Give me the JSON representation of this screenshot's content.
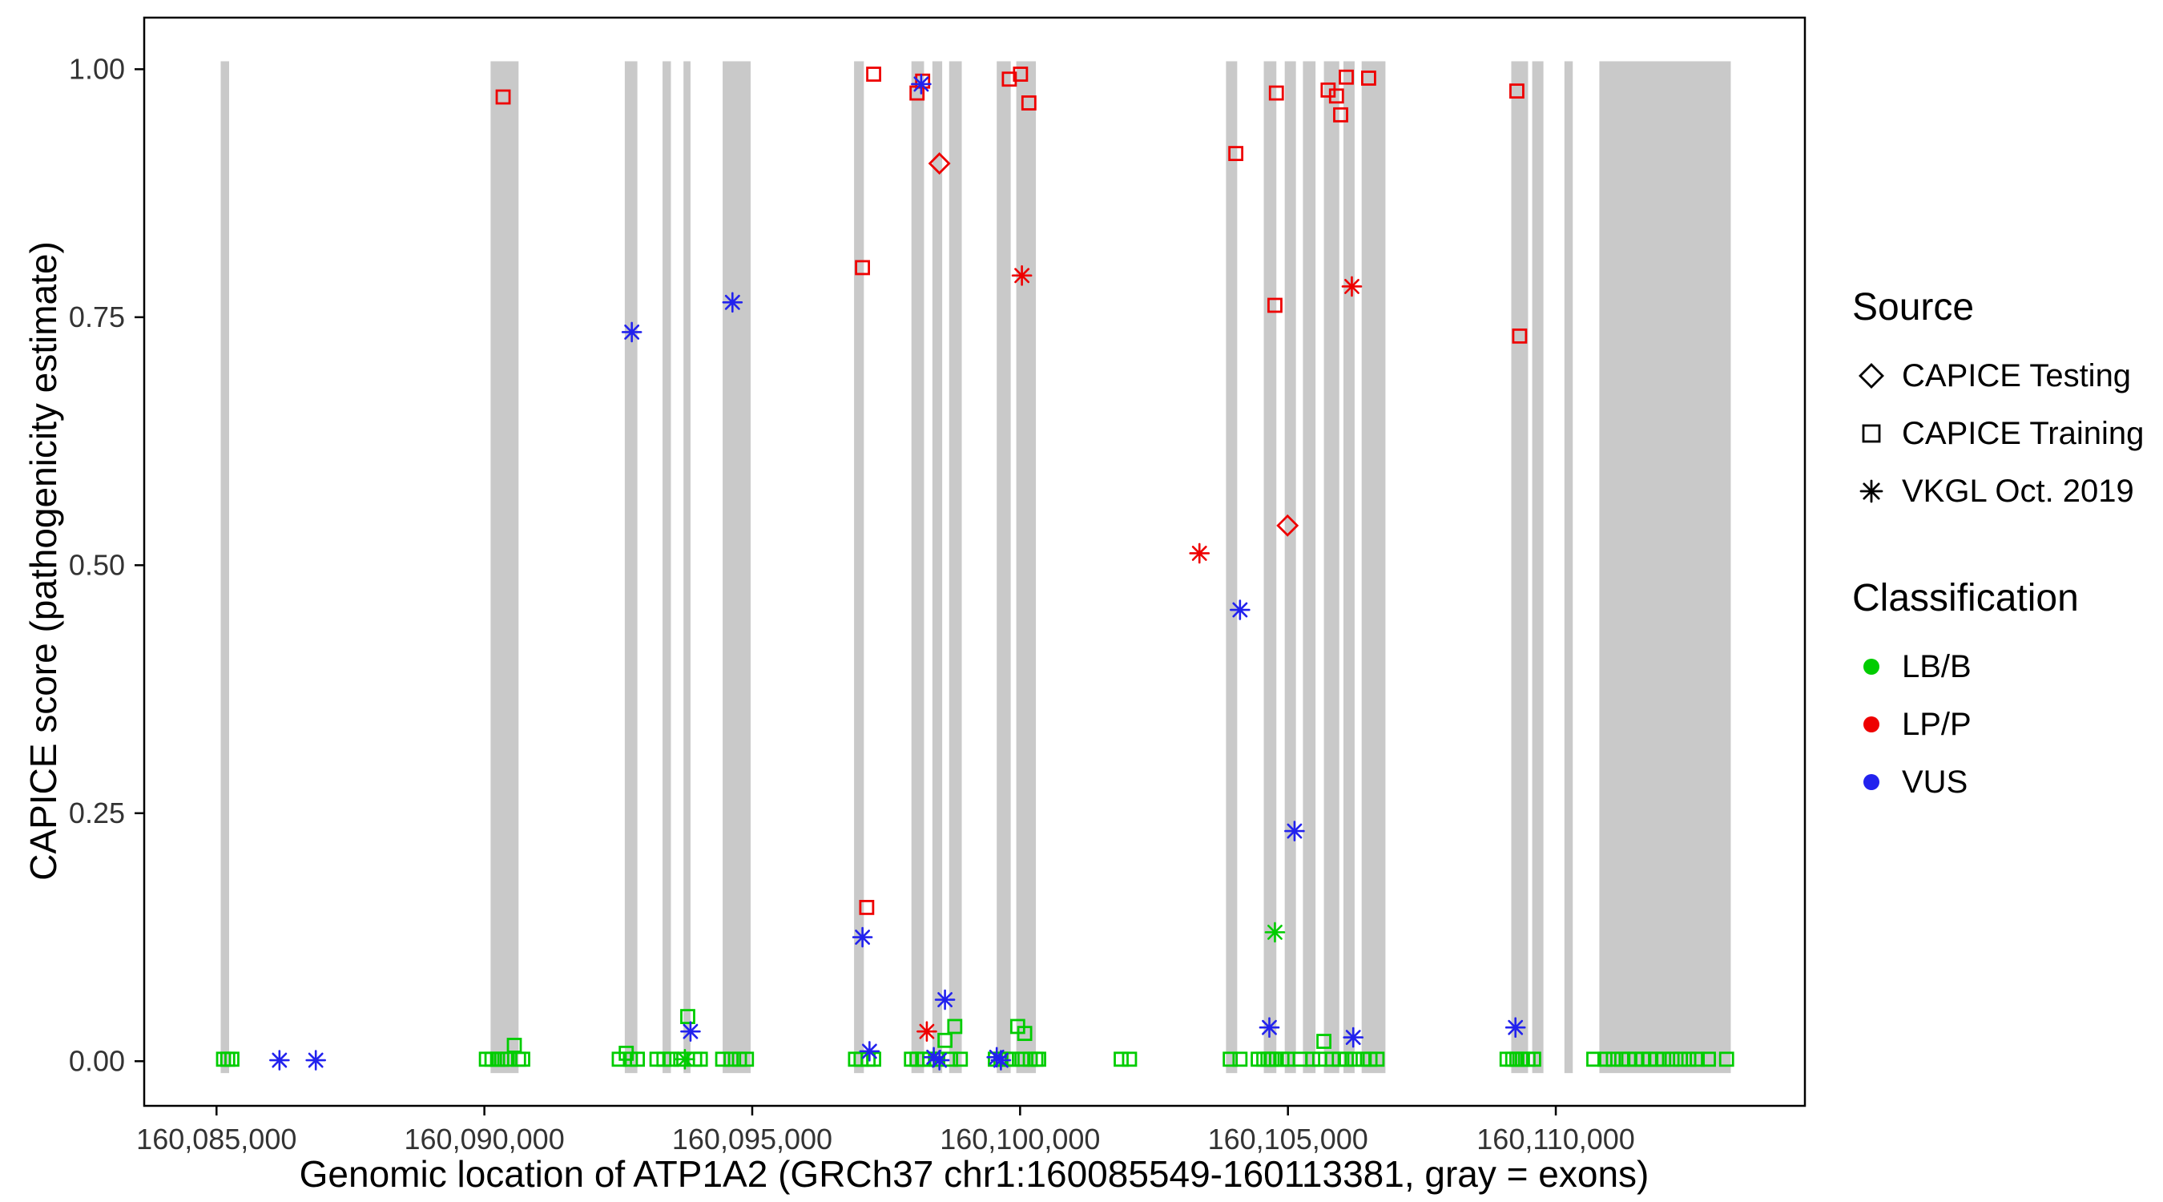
{
  "chart_data": {
    "type": "scatter",
    "xlabel": "Genomic location of ATP1A2 (GRCh37 chr1:160085549-160113381, gray = exons)",
    "ylabel": "CAPICE score (pathogenicity estimate)",
    "xlim": [
      160083650,
      160114650
    ],
    "ylim": [
      -0.045,
      1.052
    ],
    "grid": false,
    "x_ticks": [
      {
        "value": 160085000,
        "label": "160,085,000"
      },
      {
        "value": 160090000,
        "label": "160,090,000"
      },
      {
        "value": 160095000,
        "label": "160,095,000"
      },
      {
        "value": 160100000,
        "label": "160,100,000"
      },
      {
        "value": 160105000,
        "label": "160,105,000"
      },
      {
        "value": 160110000,
        "label": "160,110,000"
      }
    ],
    "y_ticks": [
      {
        "value": 0.0,
        "label": "0.00"
      },
      {
        "value": 0.25,
        "label": "0.25"
      },
      {
        "value": 0.5,
        "label": "0.50"
      },
      {
        "value": 0.75,
        "label": "0.75"
      },
      {
        "value": 1.0,
        "label": "1.00"
      }
    ],
    "exon_color": "#c9c9c9",
    "exon_band": [
      -0.012,
      1.008
    ],
    "exons": [
      [
        160085078,
        160085235
      ],
      [
        160090116,
        160090638
      ],
      [
        160092621,
        160092856
      ],
      [
        160093326,
        160093482
      ],
      [
        160093717,
        160093848
      ],
      [
        160094448,
        160094970
      ],
      [
        160096901,
        160097084
      ],
      [
        160097972,
        160098207
      ],
      [
        160098363,
        160098546
      ],
      [
        160098676,
        160098911
      ],
      [
        160099564,
        160099825
      ],
      [
        160099929,
        160100295
      ],
      [
        160103844,
        160104053
      ],
      [
        160104549,
        160104784
      ],
      [
        160104940,
        160105149
      ],
      [
        160105280,
        160105515
      ],
      [
        160105671,
        160105958
      ],
      [
        160106036,
        160106245
      ],
      [
        160106376,
        160106820
      ],
      [
        160109169,
        160109482
      ],
      [
        160109560,
        160109769
      ],
      [
        160110161,
        160110317
      ],
      [
        160110813,
        160113266
      ]
    ],
    "classification_colors": {
      "LB/B": "#00cc00",
      "LP/P": "#ee0000",
      "VUS": "#2222ee"
    },
    "source_shapes": {
      "CAPICE Testing": "diamond",
      "CAPICE Training": "square",
      "VKGL Oct. 2019": "asterisk"
    },
    "legend": {
      "source": {
        "title": "Source",
        "items": [
          {
            "label": "CAPICE Testing",
            "shape": "diamond"
          },
          {
            "label": "CAPICE Training",
            "shape": "square"
          },
          {
            "label": "VKGL Oct. 2019",
            "shape": "asterisk"
          }
        ]
      },
      "classification": {
        "title": "Classification",
        "items": [
          {
            "label": "LB/B",
            "color": "#00cc00"
          },
          {
            "label": "LP/P",
            "color": "#ee0000"
          },
          {
            "label": "VUS",
            "color": "#2222ee"
          }
        ]
      }
    },
    "points_columns": [
      "position",
      "score",
      "shape",
      "classification"
    ],
    "points": [
      [
        160085131,
        0.002,
        "square",
        "LB/B"
      ],
      [
        160085209,
        0.002,
        "square",
        "LB/B"
      ],
      [
        160085287,
        0.002,
        "square",
        "LB/B"
      ],
      [
        160090037,
        0.002,
        "square",
        "LB/B"
      ],
      [
        160090141,
        0.002,
        "square",
        "LB/B"
      ],
      [
        160090246,
        0.002,
        "square",
        "LB/B"
      ],
      [
        160090324,
        0.002,
        "square",
        "LB/B"
      ],
      [
        160090428,
        0.002,
        "square",
        "LB/B"
      ],
      [
        160090559,
        0.016,
        "square",
        "LB/B"
      ],
      [
        160090638,
        0.002,
        "square",
        "LB/B"
      ],
      [
        160090716,
        0.002,
        "square",
        "LB/B"
      ],
      [
        160092517,
        0.002,
        "square",
        "LB/B"
      ],
      [
        160092648,
        0.008,
        "square",
        "LB/B"
      ],
      [
        160092726,
        0.002,
        "square",
        "LB/B"
      ],
      [
        160092856,
        0.002,
        "square",
        "LB/B"
      ],
      [
        160093222,
        0.002,
        "square",
        "LB/B"
      ],
      [
        160093352,
        0.002,
        "square",
        "LB/B"
      ],
      [
        160093482,
        0.002,
        "square",
        "LB/B"
      ],
      [
        160093665,
        0.002,
        "square",
        "LB/B"
      ],
      [
        160093743,
        0.002,
        "asterisk",
        "LB/B"
      ],
      [
        160093796,
        0.045,
        "square",
        "LB/B"
      ],
      [
        160093926,
        0.002,
        "square",
        "LB/B"
      ],
      [
        160094031,
        0.002,
        "square",
        "LB/B"
      ],
      [
        160094448,
        0.002,
        "square",
        "LB/B"
      ],
      [
        160094605,
        0.002,
        "square",
        "LB/B"
      ],
      [
        160094761,
        0.002,
        "square",
        "LB/B"
      ],
      [
        160094892,
        0.002,
        "square",
        "LB/B"
      ],
      [
        160096928,
        0.002,
        "square",
        "LB/B"
      ],
      [
        160097032,
        0.002,
        "square",
        "LB/B"
      ],
      [
        160097163,
        0.002,
        "square",
        "LB/B"
      ],
      [
        160097267,
        0.002,
        "square",
        "LB/B"
      ],
      [
        160097972,
        0.002,
        "square",
        "LB/B"
      ],
      [
        160098076,
        0.002,
        "square",
        "LB/B"
      ],
      [
        160098181,
        0.002,
        "square",
        "LB/B"
      ],
      [
        160098311,
        0.002,
        "square",
        "LB/B"
      ],
      [
        160098442,
        0.002,
        "square",
        "LB/B"
      ],
      [
        160098598,
        0.021,
        "square",
        "LB/B"
      ],
      [
        160098703,
        0.002,
        "square",
        "LB/B"
      ],
      [
        160098781,
        0.035,
        "square",
        "LB/B"
      ],
      [
        160098885,
        0.002,
        "square",
        "LB/B"
      ],
      [
        160099538,
        0.002,
        "square",
        "LB/B"
      ],
      [
        160099642,
        0.002,
        "square",
        "LB/B"
      ],
      [
        160099747,
        0.002,
        "square",
        "LB/B"
      ],
      [
        160099851,
        0.002,
        "square",
        "LB/B"
      ],
      [
        160099955,
        0.035,
        "square",
        "LB/B"
      ],
      [
        160100034,
        0.002,
        "square",
        "LB/B"
      ],
      [
        160100086,
        0.028,
        "square",
        "LB/B"
      ],
      [
        160100190,
        0.002,
        "square",
        "LB/B"
      ],
      [
        160100295,
        0.002,
        "square",
        "LB/B"
      ],
      [
        160100347,
        0.002,
        "square",
        "LB/B"
      ],
      [
        160101887,
        0.002,
        "square",
        "LB/B"
      ],
      [
        160102043,
        0.002,
        "square",
        "LB/B"
      ],
      [
        160103923,
        0.002,
        "square",
        "LB/B"
      ],
      [
        160104105,
        0.002,
        "square",
        "LB/B"
      ],
      [
        160104445,
        0.002,
        "square",
        "LB/B"
      ],
      [
        160104549,
        0.002,
        "square",
        "LB/B"
      ],
      [
        160104627,
        0.002,
        "square",
        "LB/B"
      ],
      [
        160104705,
        0.002,
        "square",
        "LB/B"
      ],
      [
        160104757,
        0.13,
        "asterisk",
        "LB/B"
      ],
      [
        160104784,
        0.002,
        "square",
        "LB/B"
      ],
      [
        160104888,
        0.002,
        "square",
        "LB/B"
      ],
      [
        160104993,
        0.002,
        "square",
        "LB/B"
      ],
      [
        160105228,
        0.002,
        "square",
        "LB/B"
      ],
      [
        160105462,
        0.002,
        "square",
        "LB/B"
      ],
      [
        160105593,
        0.002,
        "square",
        "LB/B"
      ],
      [
        160105671,
        0.02,
        "square",
        "LB/B"
      ],
      [
        160105828,
        0.002,
        "square",
        "LB/B"
      ],
      [
        160105958,
        0.002,
        "square",
        "LB/B"
      ],
      [
        160106089,
        0.002,
        "square",
        "LB/B"
      ],
      [
        160106245,
        0.002,
        "square",
        "LB/B"
      ],
      [
        160106402,
        0.002,
        "square",
        "LB/B"
      ],
      [
        160106532,
        0.002,
        "square",
        "LB/B"
      ],
      [
        160106663,
        0.002,
        "square",
        "LB/B"
      ],
      [
        160109090,
        0.002,
        "square",
        "LB/B"
      ],
      [
        160109195,
        0.002,
        "square",
        "LB/B"
      ],
      [
        160109273,
        0.002,
        "square",
        "LB/B"
      ],
      [
        160109378,
        0.002,
        "square",
        "LB/B"
      ],
      [
        160109482,
        0.002,
        "square",
        "LB/B"
      ],
      [
        160109587,
        0.002,
        "square",
        "LB/B"
      ],
      [
        160110709,
        0.002,
        "square",
        "LB/B"
      ],
      [
        160110917,
        0.002,
        "square",
        "LB/B"
      ],
      [
        160111074,
        0.002,
        "square",
        "LB/B"
      ],
      [
        160111231,
        0.002,
        "square",
        "LB/B"
      ],
      [
        160111361,
        0.002,
        "square",
        "LB/B"
      ],
      [
        160111492,
        0.002,
        "square",
        "LB/B"
      ],
      [
        160111622,
        0.002,
        "square",
        "LB/B"
      ],
      [
        160111753,
        0.002,
        "square",
        "LB/B"
      ],
      [
        160111883,
        0.002,
        "square",
        "LB/B"
      ],
      [
        160112014,
        0.002,
        "square",
        "LB/B"
      ],
      [
        160112170,
        0.002,
        "square",
        "LB/B"
      ],
      [
        160112327,
        0.002,
        "square",
        "LB/B"
      ],
      [
        160112483,
        0.002,
        "square",
        "LB/B"
      ],
      [
        160112640,
        0.002,
        "square",
        "LB/B"
      ],
      [
        160112849,
        0.002,
        "square",
        "LB/B"
      ],
      [
        160113188,
        0.002,
        "square",
        "LB/B"
      ],
      [
        160090350,
        0.972,
        "square",
        "LP/P"
      ],
      [
        160097058,
        0.8,
        "square",
        "LP/P"
      ],
      [
        160097137,
        0.155,
        "square",
        "LP/P"
      ],
      [
        160097267,
        0.995,
        "square",
        "LP/P"
      ],
      [
        160098076,
        0.976,
        "square",
        "LP/P"
      ],
      [
        160098181,
        0.988,
        "square",
        "LP/P"
      ],
      [
        160099799,
        0.99,
        "square",
        "LP/P"
      ],
      [
        160100008,
        0.995,
        "square",
        "LP/P"
      ],
      [
        160100164,
        0.966,
        "square",
        "LP/P"
      ],
      [
        160104027,
        0.915,
        "square",
        "LP/P"
      ],
      [
        160104757,
        0.762,
        "square",
        "LP/P"
      ],
      [
        160104784,
        0.976,
        "square",
        "LP/P"
      ],
      [
        160105750,
        0.979,
        "square",
        "LP/P"
      ],
      [
        160105906,
        0.973,
        "square",
        "LP/P"
      ],
      [
        160105984,
        0.954,
        "square",
        "LP/P"
      ],
      [
        160106089,
        0.992,
        "square",
        "LP/P"
      ],
      [
        160106506,
        0.991,
        "square",
        "LP/P"
      ],
      [
        160109273,
        0.978,
        "square",
        "LP/P"
      ],
      [
        160109325,
        0.731,
        "square",
        "LP/P"
      ],
      [
        160098494,
        0.905,
        "diamond",
        "LP/P"
      ],
      [
        160104993,
        0.54,
        "diamond",
        "LP/P"
      ],
      [
        160100034,
        0.792,
        "asterisk",
        "LP/P"
      ],
      [
        160103348,
        0.512,
        "asterisk",
        "LP/P"
      ],
      [
        160106193,
        0.781,
        "asterisk",
        "LP/P"
      ],
      [
        160098259,
        0.03,
        "asterisk",
        "LP/P"
      ],
      [
        160092752,
        0.735,
        "asterisk",
        "VUS"
      ],
      [
        160094631,
        0.765,
        "asterisk",
        "VUS"
      ],
      [
        160098154,
        0.985,
        "asterisk",
        "VUS"
      ],
      [
        160104105,
        0.455,
        "asterisk",
        "VUS"
      ],
      [
        160105123,
        0.232,
        "asterisk",
        "VUS"
      ],
      [
        160097058,
        0.125,
        "asterisk",
        "VUS"
      ],
      [
        160098598,
        0.062,
        "asterisk",
        "VUS"
      ],
      [
        160093848,
        0.03,
        "asterisk",
        "VUS"
      ],
      [
        160104653,
        0.034,
        "asterisk",
        "VUS"
      ],
      [
        160106219,
        0.024,
        "asterisk",
        "VUS"
      ],
      [
        160109247,
        0.034,
        "asterisk",
        "VUS"
      ],
      [
        160086175,
        0.001,
        "asterisk",
        "VUS"
      ],
      [
        160086853,
        0.001,
        "asterisk",
        "VUS"
      ],
      [
        160097189,
        0.01,
        "asterisk",
        "VUS"
      ],
      [
        160098389,
        0.004,
        "asterisk",
        "VUS"
      ],
      [
        160098494,
        0.001,
        "asterisk",
        "VUS"
      ],
      [
        160099564,
        0.004,
        "asterisk",
        "VUS"
      ],
      [
        160099642,
        0.001,
        "asterisk",
        "VUS"
      ]
    ]
  }
}
